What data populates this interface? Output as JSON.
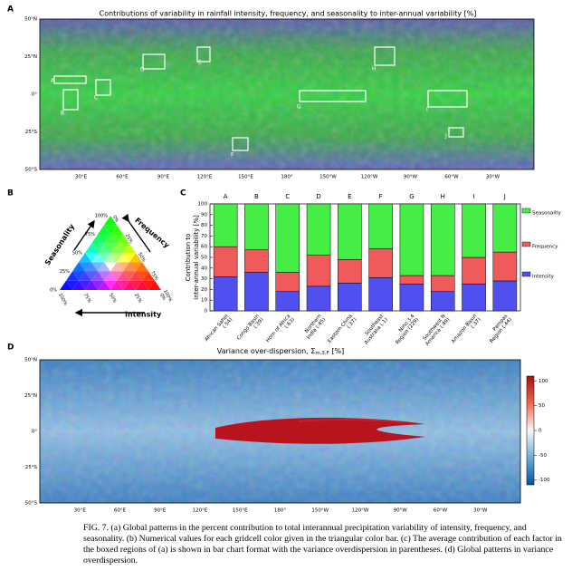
{
  "panel_a": {
    "label": "A",
    "title": "Contributions of variability in rainfall intensity, frequency, and seasonality to inter-annual variability [%]",
    "lat_labels": [
      "50°N",
      "25°N",
      "0°",
      "25°S",
      "50°S"
    ],
    "lon_labels": [
      "30°E",
      "60°E",
      "90°E",
      "120°E",
      "150°E",
      "180°",
      "150°W",
      "120°W",
      "90°W",
      "60°W",
      "30°W"
    ],
    "regions": [
      "A",
      "B",
      "C",
      "D",
      "E",
      "F",
      "G",
      "H",
      "I",
      "J"
    ]
  },
  "panel_b": {
    "label": "B",
    "ticks": [
      "100%",
      "75%",
      "50%",
      "25%",
      "0%"
    ],
    "axis_labels": [
      "Seasonality",
      "Frequency",
      "Intensity"
    ]
  },
  "chart_data": {
    "type": "stacked-bar",
    "label": "C",
    "ylabel": [
      "Contribution to",
      "inter-annual variability [%]"
    ],
    "letters": [
      "A",
      "B",
      "C",
      "D",
      "E",
      "F",
      "G",
      "H",
      "I",
      "J"
    ],
    "categories": [
      "African Sahel (.54)",
      "Congo Basin (.39)",
      "Horn of Africa (.63)",
      "Northern India (.45)",
      "Eastern China (.37)",
      "Southeast Australia (.1)",
      "Niño 3.4 Region (229)",
      "Southwest N America (.49)",
      "Amazon Basin (.37)",
      "Pampas Region (.44)"
    ],
    "series": [
      {
        "name": "Intensity",
        "color": "#5050f0",
        "values": [
          32,
          36,
          18,
          23,
          26,
          31,
          25,
          18,
          25,
          28
        ]
      },
      {
        "name": "Frequency",
        "color": "#f05a5a",
        "values": [
          28,
          21,
          18,
          29,
          22,
          27,
          8,
          15,
          25,
          27
        ]
      },
      {
        "name": "Seasonality",
        "color": "#44ee44",
        "values": [
          40,
          43,
          64,
          48,
          52,
          42,
          67,
          67,
          50,
          45
        ]
      }
    ],
    "ylim": [
      0,
      100
    ],
    "yticks": [
      0,
      10,
      20,
      30,
      40,
      50,
      60,
      70,
      80,
      90,
      100
    ]
  },
  "panel_d": {
    "label": "D",
    "title_main": "Variance over-dispersion, Σ",
    "title_sub": "m,3,F",
    "title_end": " [%]",
    "lat_labels": [
      "50°N",
      "25°N",
      "0°",
      "25°S",
      "50°S"
    ],
    "lon_labels": [
      "30°E",
      "60°E",
      "90°E",
      "120°E",
      "150°E",
      "180°",
      "150°W",
      "120°W",
      "90°W",
      "60°W",
      "30°W"
    ],
    "colorbar_ticks": [
      100,
      50,
      0,
      -50,
      -100
    ],
    "clim": [
      -110,
      110
    ]
  },
  "caption": "FIG. 7. (a) Global patterns in the percent contribution to total interannual precipitation variability of intensity, frequency, and seasonality. (b) Numerical values for each gridcell color given in the triangular color bar. (c) The average contribution of each factor in the boxed regions of (a) is shown in bar chart format with the variance overdispersion in parentheses. (d) Global patterns in variance overdispersion."
}
